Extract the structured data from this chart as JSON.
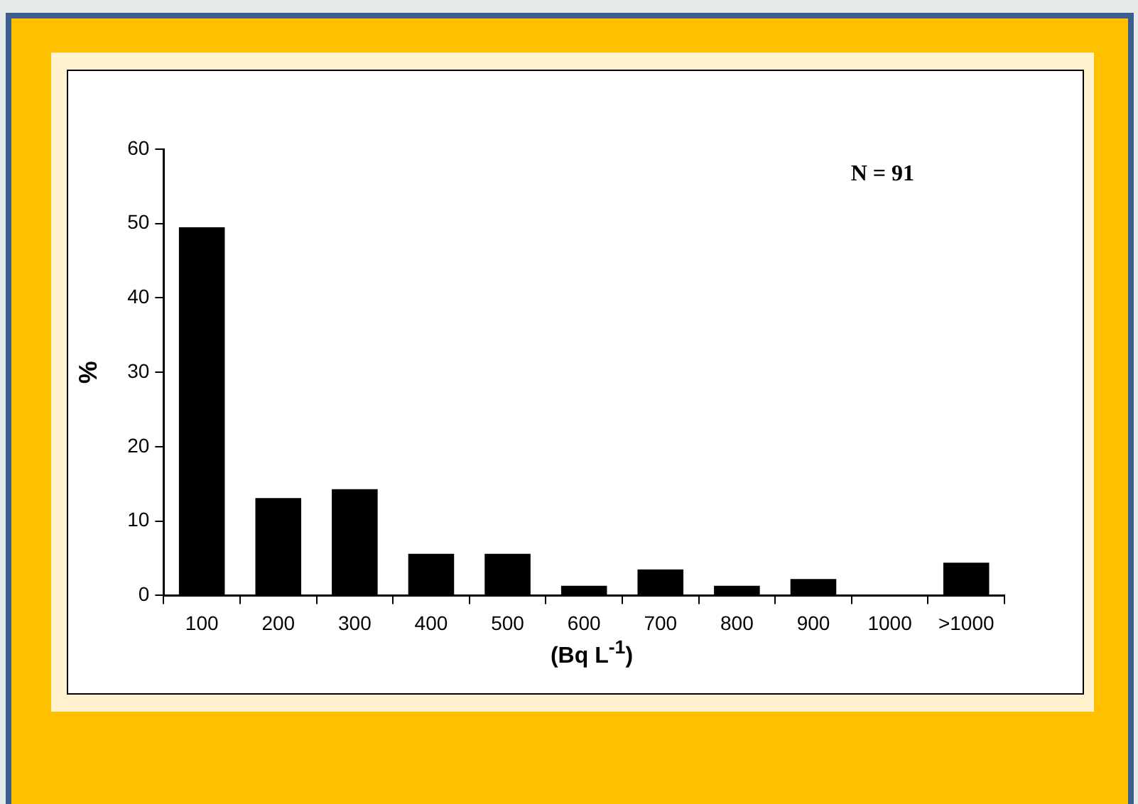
{
  "chart_data": {
    "type": "bar",
    "categories": [
      "100",
      "200",
      "300",
      "400",
      "500",
      "600",
      "700",
      "800",
      "900",
      "1000",
      ">1000"
    ],
    "values": [
      49.5,
      13.1,
      14.3,
      5.6,
      5.6,
      1.3,
      3.5,
      1.3,
      2.2,
      0,
      4.4
    ],
    "color": "#000000",
    "ylim": [
      0,
      60
    ],
    "yticks": [
      0,
      10,
      20,
      30,
      40,
      50,
      60
    ],
    "ylabel": "%",
    "xlabel": "(Bq L$^{-1}$)",
    "annotations": [
      "N = 91"
    ],
    "grid": false,
    "legend": false
  }
}
